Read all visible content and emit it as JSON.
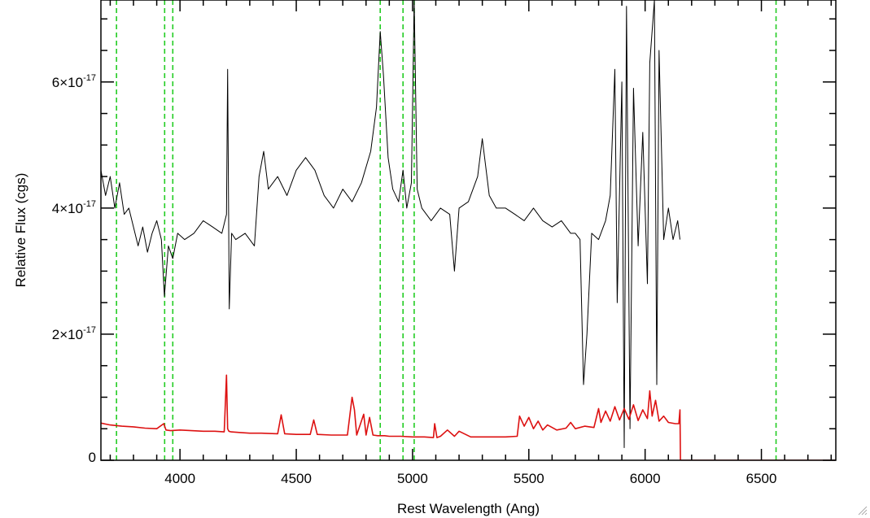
{
  "chart_data": {
    "type": "line",
    "title": "",
    "xlabel": "Rest Wavelength (Ang)",
    "ylabel": "Relative Flux (cgs)",
    "xlim": [
      3660,
      6820
    ],
    "ylim": [
      0,
      7.3e-17
    ],
    "x_ticks": [
      {
        "value": 4000,
        "label": "4000"
      },
      {
        "value": 4500,
        "label": "4500"
      },
      {
        "value": 5000,
        "label": "5000"
      },
      {
        "value": 5500,
        "label": "5500"
      },
      {
        "value": 6000,
        "label": "6000"
      },
      {
        "value": 6500,
        "label": "6500"
      }
    ],
    "x_minor_step": 100,
    "y_ticks": [
      {
        "value": 0,
        "mantissa": "0",
        "exponent": ""
      },
      {
        "value": 2e-17,
        "mantissa": "2×10",
        "exponent": "-17"
      },
      {
        "value": 4e-17,
        "mantissa": "4×10",
        "exponent": "-17"
      },
      {
        "value": 6e-17,
        "mantissa": "6×10",
        "exponent": "-17"
      }
    ],
    "y_minor_step": 5e-18,
    "reference_lines": {
      "color": "#22cc22",
      "style": "dashed",
      "x": [
        3727,
        3934,
        3969,
        4861,
        4959,
        5007,
        6563
      ]
    },
    "series": [
      {
        "color": "#000000",
        "x": [
          3660,
          3680,
          3700,
          3720,
          3740,
          3760,
          3780,
          3800,
          3820,
          3840,
          3860,
          3880,
          3900,
          3920,
          3933,
          3950,
          3969,
          3990,
          4020,
          4060,
          4100,
          4140,
          4180,
          4200,
          4205,
          4212,
          4222,
          4240,
          4280,
          4320,
          4340,
          4360,
          4380,
          4420,
          4460,
          4500,
          4540,
          4580,
          4620,
          4660,
          4700,
          4740,
          4780,
          4820,
          4845,
          4861,
          4875,
          4895,
          4915,
          4940,
          4959,
          4975,
          4995,
          5007,
          5020,
          5040,
          5080,
          5120,
          5160,
          5180,
          5200,
          5240,
          5280,
          5300,
          5330,
          5360,
          5400,
          5440,
          5480,
          5520,
          5560,
          5600,
          5640,
          5680,
          5700,
          5720,
          5735,
          5750,
          5770,
          5800,
          5830,
          5850,
          5870,
          5880,
          5900,
          5910,
          5920,
          5935,
          5950,
          5970,
          5990,
          6010,
          6020,
          6040,
          6050,
          6060,
          6080,
          6100,
          6120,
          6140,
          6150
        ],
        "y": [
          4.6e-17,
          4.2e-17,
          4.5e-17,
          4e-17,
          4.4e-17,
          3.9e-17,
          4e-17,
          3.7e-17,
          3.4e-17,
          3.7e-17,
          3.3e-17,
          3.6e-17,
          3.8e-17,
          3.5e-17,
          2.6e-17,
          3.4e-17,
          3.2e-17,
          3.6e-17,
          3.5e-17,
          3.6e-17,
          3.8e-17,
          3.7e-17,
          3.6e-17,
          3.9e-17,
          6.2e-17,
          2.4e-17,
          3.6e-17,
          3.5e-17,
          3.6e-17,
          3.4e-17,
          4.5e-17,
          4.9e-17,
          4.3e-17,
          4.5e-17,
          4.2e-17,
          4.6e-17,
          4.8e-17,
          4.6e-17,
          4.2e-17,
          4e-17,
          4.3e-17,
          4.1e-17,
          4.4e-17,
          4.9e-17,
          5.6e-17,
          6.8e-17,
          6.1e-17,
          4.8e-17,
          4.3e-17,
          4.1e-17,
          4.6e-17,
          4e-17,
          4.4e-17,
          7.3e-17,
          4.3e-17,
          4e-17,
          3.8e-17,
          4e-17,
          3.9e-17,
          3e-17,
          4e-17,
          4.1e-17,
          4.5e-17,
          5.1e-17,
          4.2e-17,
          4e-17,
          4e-17,
          3.9e-17,
          3.8e-17,
          4e-17,
          3.8e-17,
          3.7e-17,
          3.8e-17,
          3.6e-17,
          3.6e-17,
          3.5e-17,
          1.2e-17,
          2e-17,
          3.6e-17,
          3.5e-17,
          3.8e-17,
          4.2e-17,
          6.2e-17,
          2.5e-17,
          6e-17,
          2e-18,
          7.2e-17,
          5e-18,
          5.9e-17,
          3.4e-17,
          5.2e-17,
          2.8e-17,
          6.3e-17,
          7.3e-17,
          1.2e-17,
          6.5e-17,
          3.5e-17,
          4e-17,
          3.5e-17,
          3.8e-17,
          3.5e-17
        ]
      },
      {
        "color": "#dd1111",
        "x": [
          3660,
          3700,
          3750,
          3800,
          3850,
          3900,
          3930,
          3940,
          3960,
          4000,
          4050,
          4100,
          4150,
          4190,
          4200,
          4205,
          4210,
          4220,
          4260,
          4300,
          4350,
          4420,
          4435,
          4450,
          4500,
          4560,
          4575,
          4590,
          4650,
          4720,
          4740,
          4750,
          4760,
          4790,
          4800,
          4815,
          4830,
          4850,
          4880,
          4900,
          4950,
          5000,
          5050,
          5090,
          5095,
          5105,
          5120,
          5150,
          5180,
          5200,
          5250,
          5300,
          5350,
          5400,
          5450,
          5460,
          5480,
          5500,
          5520,
          5540,
          5560,
          5580,
          5620,
          5660,
          5680,
          5700,
          5740,
          5780,
          5800,
          5810,
          5830,
          5850,
          5870,
          5890,
          5910,
          5930,
          5950,
          5970,
          5990,
          6010,
          6020,
          6030,
          6045,
          6060,
          6080,
          6100,
          6130,
          6145,
          6150,
          6152,
          6200,
          6400,
          6600,
          6820
        ],
        "y": [
          5.9e-18,
          5.6e-18,
          5.4e-18,
          5.3e-18,
          5.1e-18,
          5e-18,
          5.8e-18,
          4.8e-18,
          4.7e-18,
          4.8e-18,
          4.7e-18,
          4.6e-18,
          4.6e-18,
          4.5e-18,
          1.35e-17,
          5e-18,
          4.6e-18,
          4.5e-18,
          4.4e-18,
          4.3e-18,
          4.3e-18,
          4.2e-18,
          7.2e-18,
          4.2e-18,
          4.1e-18,
          4.1e-18,
          6.4e-18,
          4.1e-18,
          4e-18,
          4e-18,
          1e-17,
          8e-18,
          4e-18,
          7.3e-18,
          4e-18,
          6.8e-18,
          4e-18,
          3.9e-18,
          3.9e-18,
          3.8e-18,
          3.8e-18,
          3.7e-18,
          3.7e-18,
          3.6e-18,
          5.8e-18,
          3.6e-18,
          3.8e-18,
          4.8e-18,
          3.8e-18,
          4.6e-18,
          3.7e-18,
          3.7e-18,
          3.7e-18,
          3.7e-18,
          3.8e-18,
          7e-18,
          5.4e-18,
          6.8e-18,
          5e-18,
          6.2e-18,
          4.8e-18,
          5.6e-18,
          4.8e-18,
          5.1e-18,
          6e-18,
          5e-18,
          5.4e-18,
          5.2e-18,
          8.2e-18,
          6e-18,
          7.8e-18,
          6.2e-18,
          8.5e-18,
          6.4e-18,
          8.2e-18,
          6.5e-18,
          8.8e-18,
          6.3e-18,
          8e-18,
          6.6e-18,
          1.1e-17,
          7e-18,
          9.5e-18,
          6.2e-18,
          7e-18,
          6e-18,
          5.8e-18,
          5.8e-18,
          8e-18,
          0,
          0,
          0,
          0,
          0
        ]
      }
    ]
  }
}
